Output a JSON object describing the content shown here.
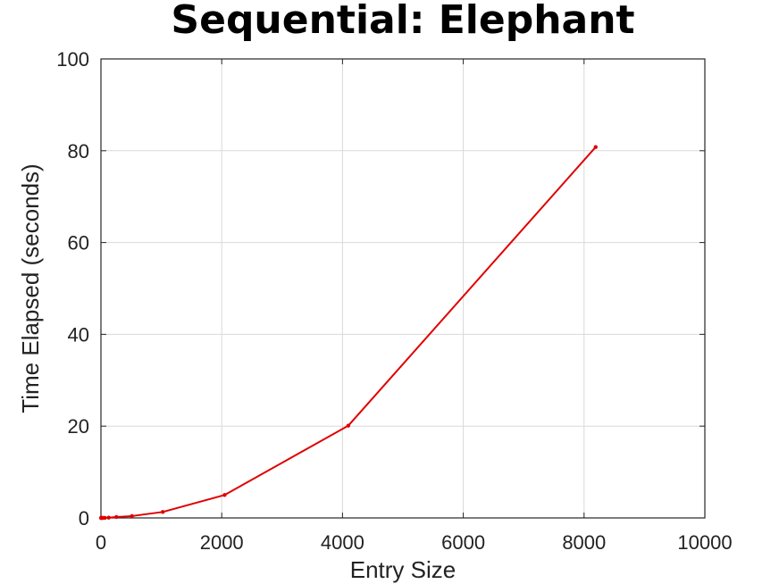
{
  "chart_data": {
    "type": "line",
    "title": "Sequential: Elephant",
    "xlabel": "Entry Size",
    "ylabel": "Time Elapsed (seconds)",
    "xlim": [
      0,
      10000
    ],
    "ylim": [
      0,
      100
    ],
    "xticks": [
      0,
      2000,
      4000,
      6000,
      8000,
      10000
    ],
    "yticks": [
      0,
      20,
      40,
      60,
      80,
      100
    ],
    "grid": true,
    "series": [
      {
        "color": "#e00000",
        "x": [
          1,
          2,
          4,
          8,
          16,
          32,
          64,
          128,
          256,
          512,
          1024,
          2048,
          4096,
          8192
        ],
        "y": [
          0.0,
          0.0,
          0.0,
          0.0,
          0.0,
          0.0,
          0.02,
          0.06,
          0.2,
          0.4,
          1.3,
          5.0,
          20.1,
          80.8
        ]
      }
    ]
  }
}
